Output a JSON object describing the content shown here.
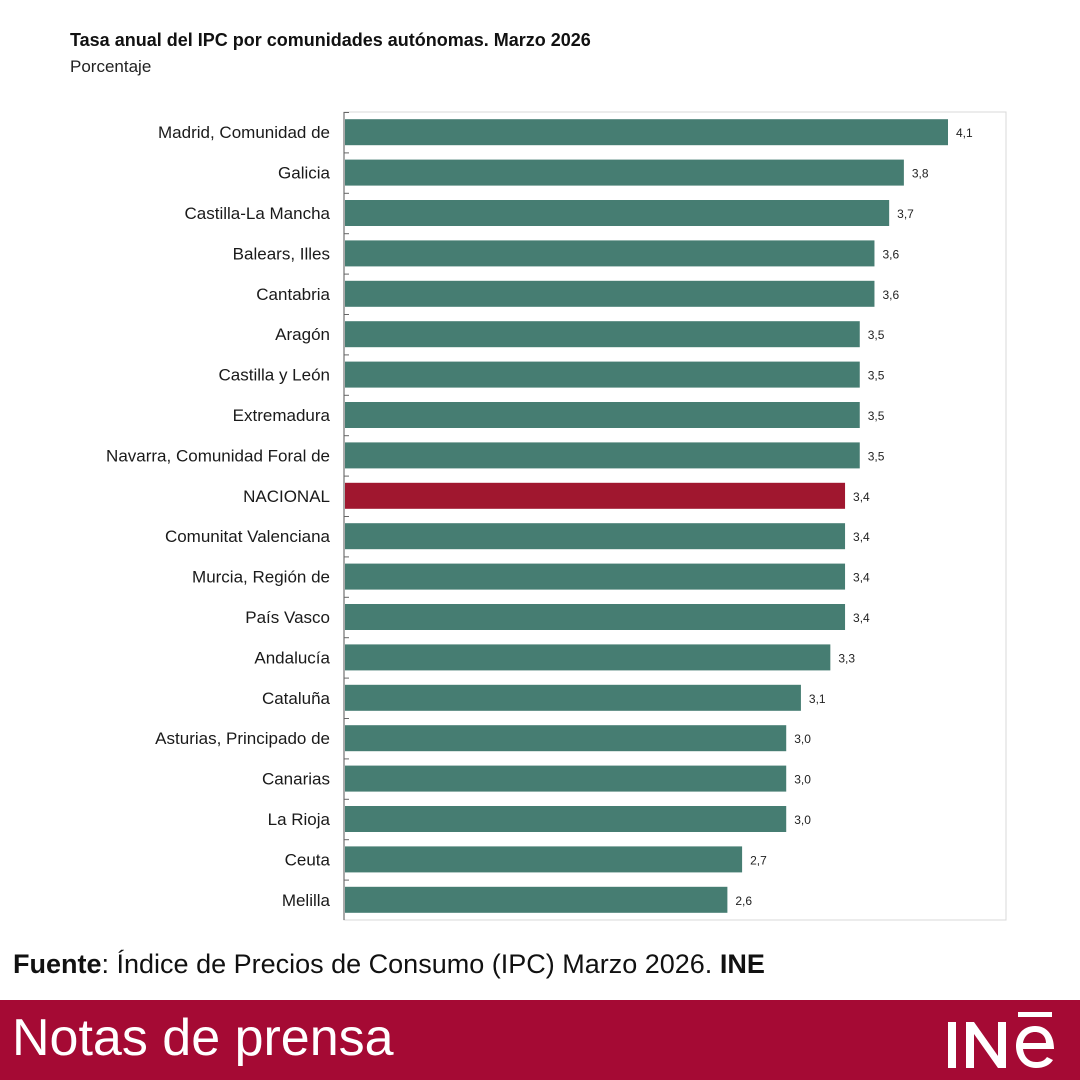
{
  "header": {
    "title": "Tasa anual del IPC por comunidades autónomas. Marzo 2026",
    "subtitle": "Porcentaje"
  },
  "source": {
    "label": "Fuente",
    "text": ": Índice de Precios de Consumo (IPC) Marzo 2026. ",
    "org": "INE"
  },
  "footer": {
    "text": "Notas de prensa",
    "logo_text": "INE"
  },
  "colors": {
    "bar": "#467d72",
    "highlight": "#a0172f",
    "footer_bg": "#a50a34"
  },
  "chart_data": {
    "type": "bar",
    "orientation": "horizontal",
    "categories": [
      "Madrid, Comunidad de",
      "Galicia",
      "Castilla-La Mancha",
      "Balears, Illes",
      "Cantabria",
      "Aragón",
      "Castilla y León",
      "Extremadura",
      "Navarra, Comunidad Foral de",
      "NACIONAL",
      "Comunitat Valenciana",
      "Murcia, Región de",
      "País Vasco",
      "Andalucía",
      "Cataluña",
      "Asturias, Principado de",
      "Canarias",
      "La Rioja",
      "Ceuta",
      "Melilla"
    ],
    "values": [
      4.1,
      3.8,
      3.7,
      3.6,
      3.6,
      3.5,
      3.5,
      3.5,
      3.5,
      3.4,
      3.4,
      3.4,
      3.4,
      3.3,
      3.1,
      3.0,
      3.0,
      3.0,
      2.7,
      2.6
    ],
    "labels": [
      "4,1",
      "3,8",
      "3,7",
      "3,6",
      "3,6",
      "3,5",
      "3,5",
      "3,5",
      "3,5",
      "3,4",
      "3,4",
      "3,4",
      "3,4",
      "3,3",
      "3,1",
      "3,0",
      "3,0",
      "3,0",
      "2,7",
      "2,6"
    ],
    "highlight": "NACIONAL",
    "xlim": [
      0,
      4.5
    ],
    "grid": false,
    "legend": "none"
  }
}
